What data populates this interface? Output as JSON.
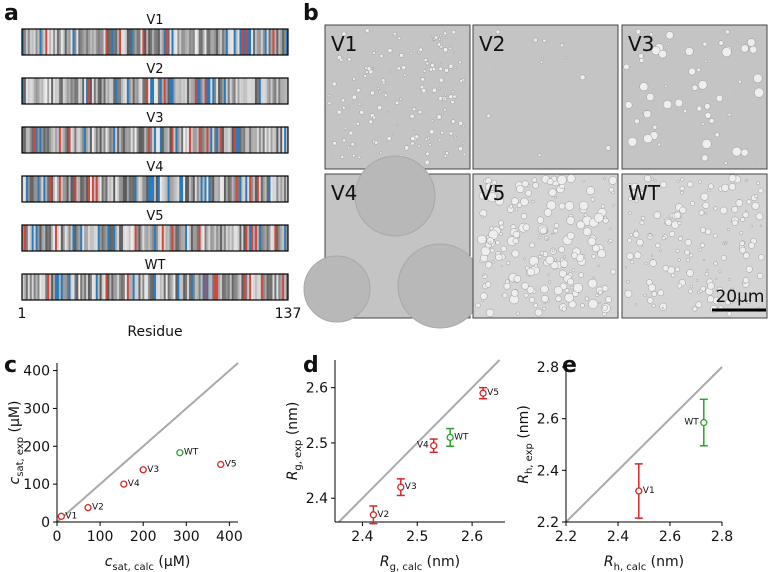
{
  "panel_labels": [
    "a",
    "b",
    "c",
    "d",
    "e"
  ],
  "sequences": {
    "labels": [
      "V1",
      "V2",
      "V3",
      "V4",
      "V5",
      "WT"
    ],
    "xlim": [
      1,
      137
    ],
    "xticks": [
      1,
      137
    ],
    "xlabel": "Residue"
  },
  "images": {
    "labels": [
      "V1",
      "V2",
      "V3",
      "V4",
      "V5",
      "WT"
    ],
    "scale_bar": "20μm"
  },
  "chart_data": [
    {
      "type": "scatter",
      "diagonal": true,
      "xlabel": {
        "main": "c",
        "sub": "sat, calc",
        "unit": " (μM)"
      },
      "ylabel": {
        "main": "c",
        "sub": "sat, exp",
        "unit": " (μM)"
      },
      "xlim": [
        0,
        420
      ],
      "ylim": [
        0,
        420
      ],
      "xticks": [
        0,
        100,
        200,
        300,
        400
      ],
      "yticks": [
        0,
        100,
        200,
        300,
        400
      ],
      "series": [
        {
          "name": "V1",
          "color": "#d62728",
          "x": [
            10
          ],
          "values": [
            15
          ]
        },
        {
          "name": "V2",
          "color": "#d62728",
          "x": [
            72
          ],
          "values": [
            38
          ]
        },
        {
          "name": "V4",
          "color": "#d62728",
          "x": [
            155
          ],
          "values": [
            100
          ]
        },
        {
          "name": "V3",
          "color": "#d62728",
          "x": [
            200
          ],
          "values": [
            138
          ]
        },
        {
          "name": "WT",
          "color": "#2ca02c",
          "x": [
            285
          ],
          "values": [
            183
          ]
        },
        {
          "name": "V5",
          "color": "#d62728",
          "x": [
            380
          ],
          "values": [
            152
          ]
        }
      ]
    },
    {
      "type": "scatter",
      "diagonal": true,
      "xlabel": {
        "main": "R",
        "sub": "g, calc",
        "unit": " (nm)"
      },
      "ylabel": {
        "main": "R",
        "sub": "g, exp",
        "unit": " (nm)"
      },
      "xlim": [
        2.35,
        2.66
      ],
      "ylim": [
        2.357,
        2.65
      ],
      "xticks": [
        2.4,
        2.5,
        2.6
      ],
      "yticks": [
        2.4,
        2.5,
        2.6
      ],
      "series": [
        {
          "name": "V2",
          "color": "#d62728",
          "x": [
            2.42
          ],
          "values": [
            2.37
          ],
          "errors": [
            0.016
          ]
        },
        {
          "name": "V3",
          "color": "#d62728",
          "x": [
            2.47
          ],
          "values": [
            2.42
          ],
          "errors": [
            0.015
          ]
        },
        {
          "name": "V4",
          "color": "#d62728",
          "x": [
            2.53
          ],
          "values": [
            2.495
          ],
          "errors": [
            0.012
          ]
        },
        {
          "name": "WT",
          "color": "#2ca02c",
          "x": [
            2.56
          ],
          "values": [
            2.51
          ],
          "errors": [
            0.016
          ]
        },
        {
          "name": "V5",
          "color": "#d62728",
          "x": [
            2.62
          ],
          "values": [
            2.59
          ],
          "errors": [
            0.01
          ]
        }
      ]
    },
    {
      "type": "scatter",
      "diagonal": true,
      "xlabel": {
        "main": "R",
        "sub": "h, calc",
        "unit": " (nm)"
      },
      "ylabel": {
        "main": "R",
        "sub": "h, exp",
        "unit": " (nm)"
      },
      "xlim": [
        2.2,
        2.8
      ],
      "ylim": [
        2.2,
        2.8
      ],
      "xticks": [
        2.2,
        2.4,
        2.6,
        2.8
      ],
      "yticks": [
        2.2,
        2.4,
        2.6,
        2.8
      ],
      "series": [
        {
          "name": "V1",
          "color": "#d62728",
          "x": [
            2.48
          ],
          "values": [
            2.32
          ],
          "errors": [
            0.105
          ]
        },
        {
          "name": "WT",
          "color": "#2ca02c",
          "x": [
            2.73
          ],
          "values": [
            2.585
          ],
          "errors": [
            0.09
          ]
        }
      ]
    }
  ]
}
